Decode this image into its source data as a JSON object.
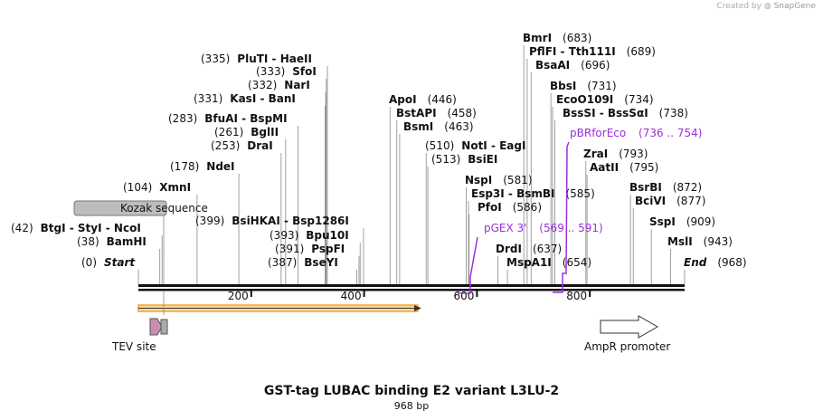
{
  "credit": {
    "prefix": "Created by",
    "brand": "SnapGene"
  },
  "title": "GST-tag LUBAC binding E2 variant L3LU-2",
  "length_label": "968 bp",
  "ticks": [
    "200",
    "400",
    "600",
    "800"
  ],
  "sites": [
    {
      "pos": "(0)",
      "parts": [
        "Start"
      ],
      "italic": true
    },
    {
      "pos": "(38)",
      "parts": [
        "BamHI"
      ]
    },
    {
      "pos": "(42)",
      "parts": [
        "BtgI",
        "StyI",
        "NcoI"
      ]
    },
    {
      "pos": "(104)",
      "parts": [
        "XmnI"
      ]
    },
    {
      "pos": "(178)",
      "parts": [
        "NdeI"
      ]
    },
    {
      "pos": "(253)",
      "parts": [
        "DraI"
      ]
    },
    {
      "pos": "(261)",
      "parts": [
        "BglII"
      ]
    },
    {
      "pos": "(283)",
      "parts": [
        "BfuAI",
        "BspMI"
      ]
    },
    {
      "pos": "(331)",
      "parts": [
        "KasI",
        "BanI"
      ]
    },
    {
      "pos": "(332)",
      "parts": [
        "NarI"
      ]
    },
    {
      "pos": "(333)",
      "parts": [
        "SfoI"
      ]
    },
    {
      "pos": "(335)",
      "parts": [
        "PluTI",
        "HaeII"
      ]
    },
    {
      "pos": "(387)",
      "parts": [
        "BseYI"
      ]
    },
    {
      "pos": "(391)",
      "parts": [
        "PspFI"
      ]
    },
    {
      "pos": "(393)",
      "parts": [
        "Bpu10I"
      ]
    },
    {
      "pos": "(399)",
      "parts": [
        "BsiHKAI",
        "Bsp1286I"
      ]
    },
    {
      "pos": "(446)",
      "parts": [
        "ApoI"
      ]
    },
    {
      "pos": "(458)",
      "parts": [
        "BstAPI"
      ]
    },
    {
      "pos": "(463)",
      "parts": [
        "BsmI"
      ]
    },
    {
      "pos": "(510)",
      "parts": [
        "NotI",
        "EagI"
      ]
    },
    {
      "pos": "(513)",
      "parts": [
        "BsiEI"
      ]
    },
    {
      "pos": "(581)",
      "parts": [
        "NspI"
      ]
    },
    {
      "pos": "(585)",
      "parts": [
        "Esp3I",
        "BsmBI"
      ]
    },
    {
      "pos": "(586)",
      "parts": [
        "PfoI"
      ]
    },
    {
      "pos": "(637)",
      "parts": [
        "DrdI"
      ]
    },
    {
      "pos": "(654)",
      "parts": [
        "MspA1I"
      ]
    },
    {
      "pos": "(683)",
      "parts": [
        "BmrI"
      ]
    },
    {
      "pos": "(689)",
      "parts": [
        "PflFI",
        "Tth111I"
      ]
    },
    {
      "pos": "(696)",
      "parts": [
        "BsaAI"
      ]
    },
    {
      "pos": "(731)",
      "parts": [
        "BbsI"
      ]
    },
    {
      "pos": "(734)",
      "parts": [
        "EcoO109I"
      ]
    },
    {
      "pos": "(738)",
      "parts": [
        "BssSI",
        "BssSαI"
      ]
    },
    {
      "pos": "(793)",
      "parts": [
        "ZraI"
      ]
    },
    {
      "pos": "(795)",
      "parts": [
        "AatII"
      ]
    },
    {
      "pos": "(872)",
      "parts": [
        "BsrBI"
      ]
    },
    {
      "pos": "(877)",
      "parts": [
        "BciVI"
      ]
    },
    {
      "pos": "(909)",
      "parts": [
        "SspI"
      ]
    },
    {
      "pos": "(943)",
      "parts": [
        "MslI"
      ]
    },
    {
      "pos": "(968)",
      "parts": [
        "End"
      ],
      "italic": true
    }
  ],
  "primers": [
    {
      "name": "pGEX 3'",
      "range": "(569 .. 591)"
    },
    {
      "name": "pBRforEco",
      "range": "(736 .. 754)"
    }
  ],
  "features": {
    "kozak": "Kozak sequence",
    "tev": "TEV site",
    "ampr": "AmpR promoter"
  },
  "colors": {
    "orf": "#f5a623",
    "primer": "#9b30d9",
    "tev": "#c58fb0",
    "kozak": "#bdbdbd"
  }
}
